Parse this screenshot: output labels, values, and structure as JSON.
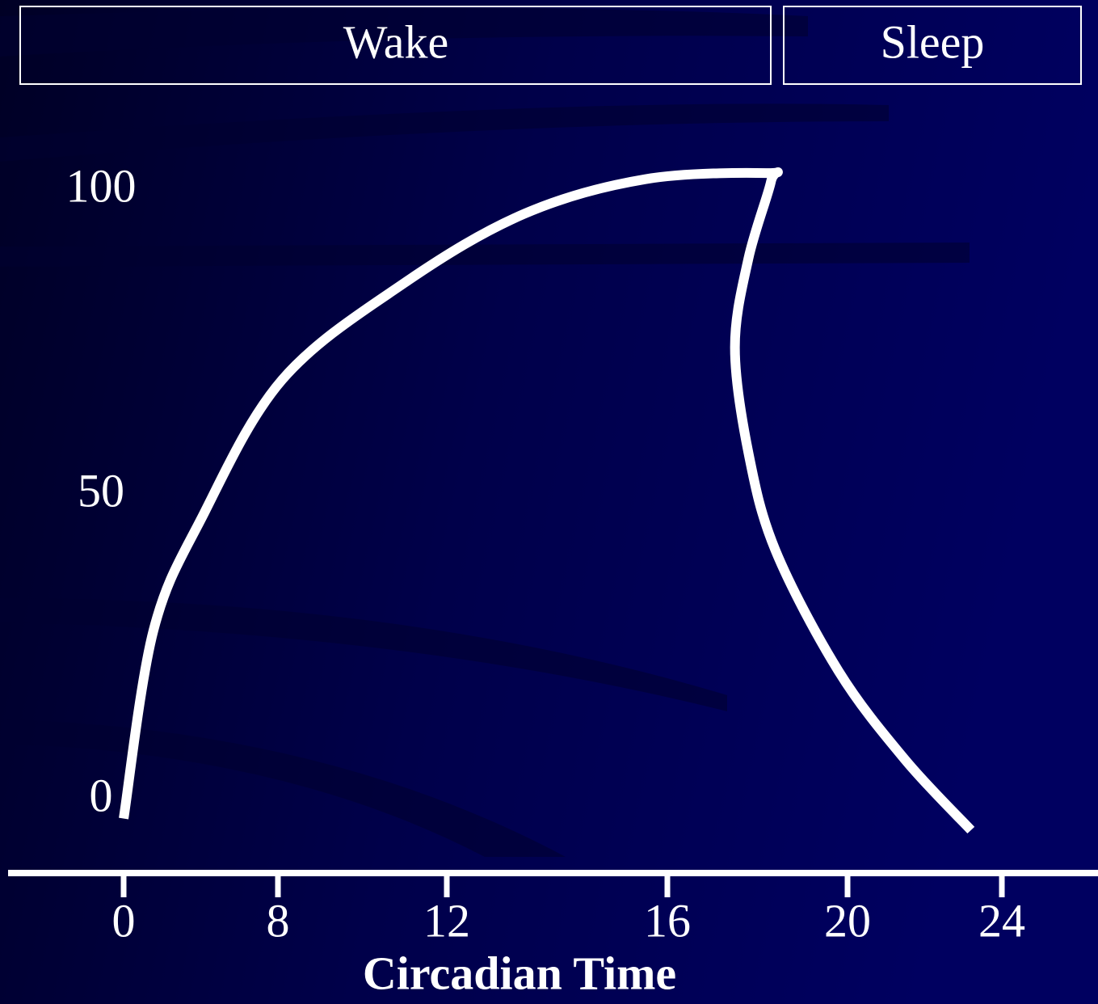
{
  "chart_data": {
    "type": "line",
    "phases": [
      "Wake",
      "Sleep"
    ],
    "x_label": "Circadian Time",
    "series": [
      {
        "color": "#ffffff",
        "x": [
          0,
          1.55,
          4.06,
          8.1,
          11.0,
          13.4,
          15.6,
          18.2,
          18.3,
          17.8,
          17.5,
          17.8,
          18.4,
          19.8,
          21.5,
          23.2
        ],
        "values": [
          -3,
          27.9,
          46.4,
          69,
          84.9,
          96.2,
          101.9,
          102.9,
          101.5,
          88.9,
          74.3,
          57,
          41,
          21.2,
          6.6,
          -4.9
        ]
      }
    ],
    "ylim": [
      0,
      100
    ],
    "yticks": [
      0,
      50,
      100
    ],
    "xticks": [
      0,
      8,
      12,
      16,
      20,
      24
    ]
  }
}
